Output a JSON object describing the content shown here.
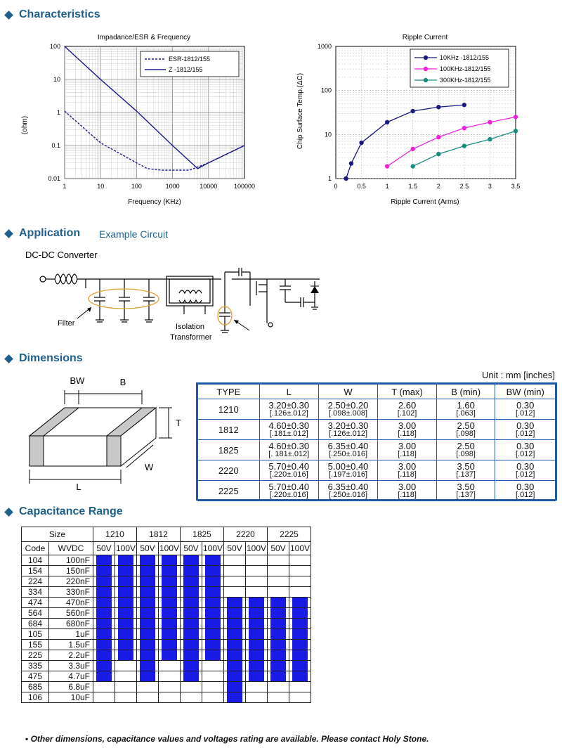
{
  "sections": {
    "characteristics": "Characteristics",
    "application": "Application",
    "application_sub": "Example Circuit",
    "dimensions": "Dimensions",
    "capacitance": "Capacitance Range"
  },
  "chart_data": [
    {
      "type": "line",
      "title": "Impadance/ESR & Frequency",
      "xlabel": "Frequency (KHz)",
      "ylabel": "(ohm)",
      "xscale": "log",
      "yscale": "log",
      "xlim": [
        1,
        100000
      ],
      "ylim": [
        0.01,
        100
      ],
      "xticks": [
        "1",
        "10",
        "100",
        "1000",
        "10000",
        "100000"
      ],
      "yticks": [
        "0.01",
        "0.1",
        "1",
        "10",
        "100"
      ],
      "legend_position": "top-right",
      "series": [
        {
          "name": "ESR-1812/155",
          "style": "dashed",
          "x": [
            1,
            10,
            100,
            200,
            500,
            1000,
            3000,
            10000,
            100000
          ],
          "y": [
            1.1,
            0.12,
            0.03,
            0.02,
            0.018,
            0.018,
            0.018,
            0.03,
            0.1
          ]
        },
        {
          "name": "Z      -1812/155",
          "style": "solid",
          "x": [
            1,
            10,
            100,
            1000,
            5000,
            10000,
            100000
          ],
          "y": [
            100,
            10,
            1.1,
            0.1,
            0.02,
            0.03,
            0.1
          ]
        }
      ]
    },
    {
      "type": "line",
      "title": "Ripple Current",
      "xlabel": "Ripple Current (Arms)",
      "ylabel": "Chip Surface Temp.(ΔC)",
      "yscale": "log",
      "xlim": [
        0,
        3.5
      ],
      "ylim": [
        1,
        1000
      ],
      "xticks": [
        "0",
        "0.5",
        "1",
        "1.5",
        "2",
        "2.5",
        "3",
        "3.5"
      ],
      "yticks": [
        "1",
        "10",
        "100",
        "1000"
      ],
      "legend_position": "top-right",
      "series": [
        {
          "name": "10KHz  -1812/155",
          "color": "#1a1a80",
          "x": [
            0.2,
            0.3,
            0.5,
            1.0,
            1.5,
            2.0,
            2.5
          ],
          "y": [
            1,
            2.2,
            6.5,
            19,
            34,
            42,
            47
          ]
        },
        {
          "name": "100KHz-1812/155",
          "color": "#ee22dd",
          "x": [
            1.0,
            1.5,
            2.0,
            2.5,
            3.0,
            3.5
          ],
          "y": [
            1.9,
            4.7,
            8.7,
            14,
            19,
            25
          ]
        },
        {
          "name": "300KHz-1812/155",
          "color": "#1a8c7f",
          "x": [
            1.5,
            2.0,
            2.5,
            3.0,
            3.5
          ],
          "y": [
            1.9,
            3.6,
            5.5,
            7.8,
            12
          ]
        }
      ]
    }
  ],
  "circuit": {
    "title": "DC-DC Converter",
    "filter": "Filter",
    "isolation1": "Isolation",
    "isolation2": "Transformer"
  },
  "dimensions": {
    "unit": "Unit : mm [inches]",
    "diagram": {
      "bw": "BW",
      "b": "B",
      "t": "T",
      "w": "W",
      "l": "L"
    },
    "headers": [
      "TYPE",
      "L",
      "W",
      "T (max)",
      "B (min)",
      "BW (min)"
    ],
    "rows": [
      {
        "type": "1210",
        "cells": [
          [
            "3.20±0.30",
            "[.126±.012]"
          ],
          [
            "2.50±0.20",
            "[.098±.008]"
          ],
          [
            "2.60",
            "[.102]"
          ],
          [
            "1.60",
            "[.063]"
          ],
          [
            "0.30",
            "[.012]"
          ]
        ]
      },
      {
        "type": "1812",
        "cells": [
          [
            "4.60±0.30",
            "[.181±.012]"
          ],
          [
            "3.20±0.30",
            "[.126±.012]"
          ],
          [
            "3.00",
            "[.118]"
          ],
          [
            "2.50",
            "[.098]"
          ],
          [
            "0.30",
            "[.012]"
          ]
        ]
      },
      {
        "type": "1825",
        "cells": [
          [
            "4.60±0.30",
            "[. 181±.012]"
          ],
          [
            "6.35±0.40",
            "[.250±.016]"
          ],
          [
            "3.00",
            "[.118]"
          ],
          [
            "2.50",
            "[.098]"
          ],
          [
            "0.30",
            "[.012]"
          ]
        ]
      },
      {
        "type": "2220",
        "cells": [
          [
            "5.70±0.40",
            "[.220±.016]"
          ],
          [
            "5.00±0.40",
            "[.197±.016]"
          ],
          [
            "3.00",
            "[.118]"
          ],
          [
            "3.50",
            "[.137]"
          ],
          [
            "0.30",
            "[.012]"
          ]
        ]
      },
      {
        "type": "2225",
        "cells": [
          [
            "5.70±0.40",
            "[.220±.016]"
          ],
          [
            "6.35±0.40",
            "[.250±.016]"
          ],
          [
            "3.00",
            "[.118]"
          ],
          [
            "3.50",
            "[.137]"
          ],
          [
            "0.30",
            "[.012]"
          ]
        ]
      }
    ]
  },
  "capacitance": {
    "size_label": "Size",
    "code_label": "Code",
    "wvdc_label": "WVDC",
    "sizes": [
      "1210",
      "1812",
      "1825",
      "2220",
      "2225"
    ],
    "voltages": [
      "50V",
      "100V"
    ],
    "rows": [
      {
        "code": "104",
        "value": "100nF",
        "fill": [
          1,
          1,
          1,
          1,
          1,
          1,
          0,
          0,
          0,
          0
        ]
      },
      {
        "code": "154",
        "value": "150nF",
        "fill": [
          1,
          1,
          1,
          1,
          1,
          1,
          0,
          0,
          0,
          0
        ]
      },
      {
        "code": "224",
        "value": "220nF",
        "fill": [
          1,
          1,
          1,
          1,
          1,
          1,
          0,
          0,
          0,
          0
        ]
      },
      {
        "code": "334",
        "value": "330nF",
        "fill": [
          1,
          1,
          1,
          1,
          1,
          1,
          0,
          0,
          0,
          0
        ]
      },
      {
        "code": "474",
        "value": "470nF",
        "fill": [
          1,
          1,
          1,
          1,
          1,
          1,
          1,
          1,
          1,
          1
        ]
      },
      {
        "code": "564",
        "value": "560nF",
        "fill": [
          1,
          1,
          1,
          1,
          1,
          1,
          1,
          1,
          1,
          1
        ]
      },
      {
        "code": "684",
        "value": "680nF",
        "fill": [
          1,
          1,
          1,
          1,
          1,
          1,
          1,
          1,
          1,
          1
        ]
      },
      {
        "code": "105",
        "value": "1uF",
        "fill": [
          1,
          1,
          1,
          1,
          1,
          1,
          1,
          1,
          1,
          1
        ]
      },
      {
        "code": "155",
        "value": "1.5uF",
        "fill": [
          1,
          1,
          1,
          1,
          1,
          1,
          1,
          1,
          1,
          1
        ]
      },
      {
        "code": "225",
        "value": "2.2uF",
        "fill": [
          1,
          1,
          1,
          1,
          1,
          1,
          1,
          1,
          1,
          1
        ]
      },
      {
        "code": "335",
        "value": "3.3uF",
        "fill": [
          1,
          0,
          1,
          0,
          1,
          0,
          1,
          1,
          1,
          1
        ]
      },
      {
        "code": "475",
        "value": "4.7uF",
        "fill": [
          1,
          0,
          1,
          0,
          1,
          0,
          1,
          1,
          1,
          1
        ]
      },
      {
        "code": "685",
        "value": "6.8uF",
        "fill": [
          0,
          0,
          0,
          0,
          0,
          0,
          1,
          0,
          0,
          0
        ]
      },
      {
        "code": "106",
        "value": "10uF",
        "fill": [
          0,
          0,
          0,
          0,
          0,
          0,
          1,
          0,
          0,
          0
        ]
      }
    ]
  },
  "footnote": "Other dimensions, capacitance values and voltages rating are available. Please contact Holy Stone."
}
